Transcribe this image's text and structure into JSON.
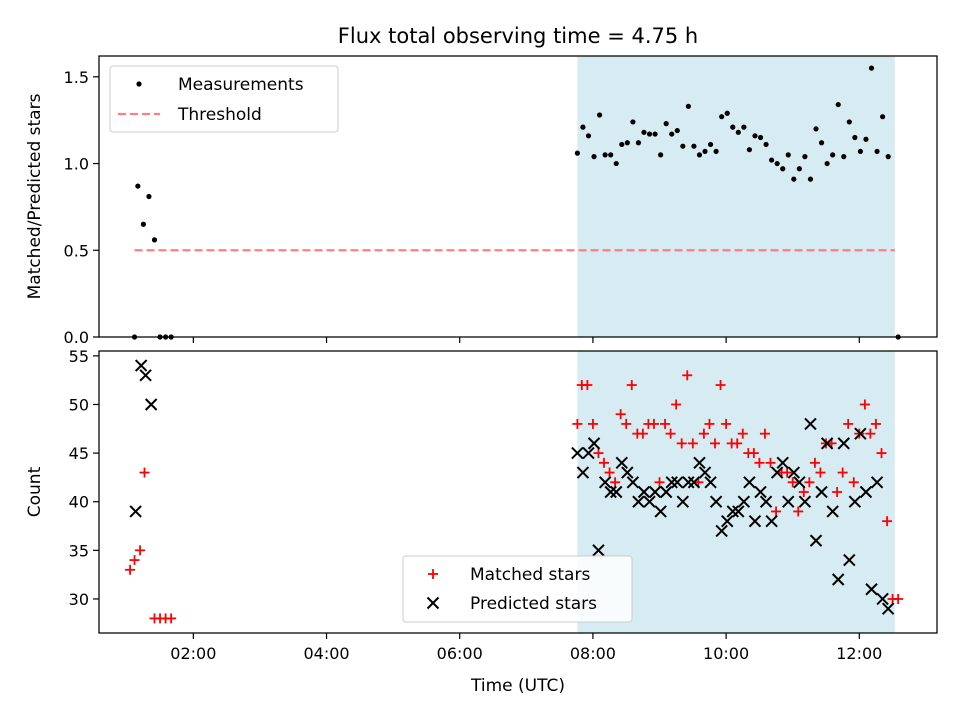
{
  "figure": {
    "title": "Flux total observing time = 4.75 h"
  },
  "chart_data": [
    {
      "type": "scatter",
      "ylabel": "Matched/Predicted stars",
      "xlim": [
        "00:35",
        "13:10"
      ],
      "ylim": [
        0,
        1.62
      ],
      "yticks": [
        0.0,
        0.5,
        1.0,
        1.5
      ],
      "grid": false,
      "legend_position": "top-left",
      "shaded_interval": {
        "x": [
          "07:46",
          "12:32"
        ],
        "color": "#add8e6"
      },
      "series": [
        {
          "name": "Measurements",
          "color": "#000000",
          "marker": "dot",
          "points": [
            {
              "x": "01:07",
              "y": 0.0
            },
            {
              "x": "01:10",
              "y": 0.87
            },
            {
              "x": "01:15",
              "y": 0.65
            },
            {
              "x": "01:20",
              "y": 0.81
            },
            {
              "x": "01:25",
              "y": 0.56
            },
            {
              "x": "01:30",
              "y": 0.0
            },
            {
              "x": "01:35",
              "y": 0.0
            },
            {
              "x": "01:40",
              "y": 0.0
            },
            {
              "x": "07:46",
              "y": 1.06
            },
            {
              "x": "07:51",
              "y": 1.21
            },
            {
              "x": "07:56",
              "y": 1.16
            },
            {
              "x": "08:01",
              "y": 1.04
            },
            {
              "x": "08:06",
              "y": 1.28
            },
            {
              "x": "08:11",
              "y": 1.05
            },
            {
              "x": "08:16",
              "y": 1.05
            },
            {
              "x": "08:21",
              "y": 1.0
            },
            {
              "x": "08:26",
              "y": 1.11
            },
            {
              "x": "08:31",
              "y": 1.12
            },
            {
              "x": "08:36",
              "y": 1.24
            },
            {
              "x": "08:41",
              "y": 1.12
            },
            {
              "x": "08:46",
              "y": 1.18
            },
            {
              "x": "08:51",
              "y": 1.17
            },
            {
              "x": "08:56",
              "y": 1.17
            },
            {
              "x": "09:01",
              "y": 1.05
            },
            {
              "x": "09:06",
              "y": 1.23
            },
            {
              "x": "09:11",
              "y": 1.17
            },
            {
              "x": "09:16",
              "y": 1.19
            },
            {
              "x": "09:21",
              "y": 1.1
            },
            {
              "x": "09:26",
              "y": 1.33
            },
            {
              "x": "09:31",
              "y": 1.1
            },
            {
              "x": "09:36",
              "y": 1.05
            },
            {
              "x": "09:41",
              "y": 1.07
            },
            {
              "x": "09:46",
              "y": 1.11
            },
            {
              "x": "09:51",
              "y": 1.07
            },
            {
              "x": "09:56",
              "y": 1.27
            },
            {
              "x": "10:01",
              "y": 1.29
            },
            {
              "x": "10:06",
              "y": 1.21
            },
            {
              "x": "10:11",
              "y": 1.18
            },
            {
              "x": "10:16",
              "y": 1.21
            },
            {
              "x": "10:21",
              "y": 1.08
            },
            {
              "x": "10:26",
              "y": 1.16
            },
            {
              "x": "10:31",
              "y": 1.15
            },
            {
              "x": "10:36",
              "y": 1.11
            },
            {
              "x": "10:41",
              "y": 1.02
            },
            {
              "x": "10:46",
              "y": 1.0
            },
            {
              "x": "10:51",
              "y": 0.97
            },
            {
              "x": "10:56",
              "y": 1.05
            },
            {
              "x": "11:01",
              "y": 0.91
            },
            {
              "x": "11:06",
              "y": 0.97
            },
            {
              "x": "11:11",
              "y": 1.04
            },
            {
              "x": "11:16",
              "y": 0.91
            },
            {
              "x": "11:21",
              "y": 1.2
            },
            {
              "x": "11:26",
              "y": 1.12
            },
            {
              "x": "11:31",
              "y": 1.0
            },
            {
              "x": "11:36",
              "y": 1.05
            },
            {
              "x": "11:41",
              "y": 1.34
            },
            {
              "x": "11:46",
              "y": 1.04
            },
            {
              "x": "11:51",
              "y": 1.24
            },
            {
              "x": "11:56",
              "y": 1.15
            },
            {
              "x": "12:01",
              "y": 1.07
            },
            {
              "x": "12:06",
              "y": 1.14
            },
            {
              "x": "12:11",
              "y": 1.55
            },
            {
              "x": "12:16",
              "y": 1.07
            },
            {
              "x": "12:21",
              "y": 1.27
            },
            {
              "x": "12:26",
              "y": 1.04
            },
            {
              "x": "12:35",
              "y": 0.0
            }
          ]
        },
        {
          "name": "Threshold",
          "color": "#ff7f7f",
          "style": "dashed",
          "x": [
            "01:07",
            "12:32"
          ],
          "y": [
            0.5,
            0.5
          ]
        }
      ]
    },
    {
      "type": "scatter",
      "xlabel": "Time (UTC)",
      "ylabel": "Count",
      "xlim": [
        "00:35",
        "13:10"
      ],
      "ylim": [
        26.5,
        55.5
      ],
      "xticks": [
        "02:00",
        "04:00",
        "06:00",
        "08:00",
        "10:00",
        "12:00"
      ],
      "yticks": [
        30,
        35,
        40,
        45,
        50,
        55
      ],
      "grid": false,
      "legend_position": "bottom-center",
      "shaded_interval": {
        "x": [
          "07:46",
          "12:32"
        ],
        "color": "#add8e6"
      },
      "series": [
        {
          "name": "Matched stars",
          "color": "#ff0000",
          "marker": "plus",
          "points": [
            {
              "x": "01:03",
              "y": 33
            },
            {
              "x": "01:07",
              "y": 34
            },
            {
              "x": "01:12",
              "y": 35
            },
            {
              "x": "01:16",
              "y": 43
            },
            {
              "x": "01:25",
              "y": 28
            },
            {
              "x": "01:30",
              "y": 28
            },
            {
              "x": "01:35",
              "y": 28
            },
            {
              "x": "01:40",
              "y": 28
            },
            {
              "x": "07:46",
              "y": 48
            },
            {
              "x": "07:50",
              "y": 52
            },
            {
              "x": "07:55",
              "y": 52
            },
            {
              "x": "08:00",
              "y": 48
            },
            {
              "x": "08:05",
              "y": 45
            },
            {
              "x": "08:10",
              "y": 44
            },
            {
              "x": "08:15",
              "y": 43
            },
            {
              "x": "08:20",
              "y": 42
            },
            {
              "x": "08:25",
              "y": 49
            },
            {
              "x": "08:30",
              "y": 48
            },
            {
              "x": "08:35",
              "y": 52
            },
            {
              "x": "08:40",
              "y": 47
            },
            {
              "x": "08:45",
              "y": 47
            },
            {
              "x": "08:50",
              "y": 48
            },
            {
              "x": "08:55",
              "y": 48
            },
            {
              "x": "09:00",
              "y": 42
            },
            {
              "x": "09:05",
              "y": 48
            },
            {
              "x": "09:10",
              "y": 47
            },
            {
              "x": "09:15",
              "y": 50
            },
            {
              "x": "09:20",
              "y": 46
            },
            {
              "x": "09:25",
              "y": 53
            },
            {
              "x": "09:30",
              "y": 46
            },
            {
              "x": "09:35",
              "y": 42
            },
            {
              "x": "09:40",
              "y": 47
            },
            {
              "x": "09:45",
              "y": 48
            },
            {
              "x": "09:50",
              "y": 46
            },
            {
              "x": "09:55",
              "y": 52
            },
            {
              "x": "10:00",
              "y": 48
            },
            {
              "x": "10:05",
              "y": 46
            },
            {
              "x": "10:10",
              "y": 46
            },
            {
              "x": "10:15",
              "y": 47
            },
            {
              "x": "10:20",
              "y": 45
            },
            {
              "x": "10:25",
              "y": 45
            },
            {
              "x": "10:30",
              "y": 44
            },
            {
              "x": "10:35",
              "y": 47
            },
            {
              "x": "10:40",
              "y": 44
            },
            {
              "x": "10:45",
              "y": 39
            },
            {
              "x": "10:50",
              "y": 43
            },
            {
              "x": "10:55",
              "y": 43
            },
            {
              "x": "11:00",
              "y": 42
            },
            {
              "x": "11:05",
              "y": 39
            },
            {
              "x": "11:10",
              "y": 41
            },
            {
              "x": "11:15",
              "y": 42
            },
            {
              "x": "11:20",
              "y": 44
            },
            {
              "x": "11:25",
              "y": 43
            },
            {
              "x": "11:30",
              "y": 46
            },
            {
              "x": "11:35",
              "y": 46
            },
            {
              "x": "11:40",
              "y": 41
            },
            {
              "x": "11:45",
              "y": 43
            },
            {
              "x": "11:50",
              "y": 48
            },
            {
              "x": "11:55",
              "y": 42
            },
            {
              "x": "12:00",
              "y": 47
            },
            {
              "x": "12:05",
              "y": 50
            },
            {
              "x": "12:10",
              "y": 47
            },
            {
              "x": "12:15",
              "y": 48
            },
            {
              "x": "12:20",
              "y": 45
            },
            {
              "x": "12:25",
              "y": 38
            },
            {
              "x": "12:30",
              "y": 30
            },
            {
              "x": "12:35",
              "y": 30
            }
          ]
        },
        {
          "name": "Predicted stars",
          "color": "#000000",
          "marker": "x",
          "points": [
            {
              "x": "01:08",
              "y": 39
            },
            {
              "x": "01:13",
              "y": 54
            },
            {
              "x": "01:17",
              "y": 53
            },
            {
              "x": "01:22",
              "y": 50
            },
            {
              "x": "07:46",
              "y": 45
            },
            {
              "x": "07:51",
              "y": 43
            },
            {
              "x": "07:56",
              "y": 45
            },
            {
              "x": "08:01",
              "y": 46
            },
            {
              "x": "08:05",
              "y": 35
            },
            {
              "x": "08:11",
              "y": 42
            },
            {
              "x": "08:16",
              "y": 41
            },
            {
              "x": "08:21",
              "y": 41
            },
            {
              "x": "08:26",
              "y": 44
            },
            {
              "x": "08:31",
              "y": 43
            },
            {
              "x": "08:36",
              "y": 42
            },
            {
              "x": "08:41",
              "y": 40
            },
            {
              "x": "08:46",
              "y": 41
            },
            {
              "x": "08:51",
              "y": 40
            },
            {
              "x": "08:56",
              "y": 41
            },
            {
              "x": "09:01",
              "y": 39
            },
            {
              "x": "09:06",
              "y": 41
            },
            {
              "x": "09:11",
              "y": 42
            },
            {
              "x": "09:16",
              "y": 42
            },
            {
              "x": "09:21",
              "y": 40
            },
            {
              "x": "09:26",
              "y": 42
            },
            {
              "x": "09:31",
              "y": 42
            },
            {
              "x": "09:36",
              "y": 44
            },
            {
              "x": "09:41",
              "y": 43
            },
            {
              "x": "09:46",
              "y": 42
            },
            {
              "x": "09:51",
              "y": 40
            },
            {
              "x": "09:56",
              "y": 37
            },
            {
              "x": "10:01",
              "y": 38
            },
            {
              "x": "10:06",
              "y": 39
            },
            {
              "x": "10:11",
              "y": 39
            },
            {
              "x": "10:16",
              "y": 40
            },
            {
              "x": "10:21",
              "y": 42
            },
            {
              "x": "10:26",
              "y": 38
            },
            {
              "x": "10:31",
              "y": 41
            },
            {
              "x": "10:36",
              "y": 40
            },
            {
              "x": "10:41",
              "y": 38
            },
            {
              "x": "10:46",
              "y": 43
            },
            {
              "x": "10:51",
              "y": 44
            },
            {
              "x": "10:56",
              "y": 40
            },
            {
              "x": "11:01",
              "y": 43
            },
            {
              "x": "11:06",
              "y": 42
            },
            {
              "x": "11:11",
              "y": 40
            },
            {
              "x": "11:16",
              "y": 48
            },
            {
              "x": "11:21",
              "y": 36
            },
            {
              "x": "11:26",
              "y": 41
            },
            {
              "x": "11:31",
              "y": 46
            },
            {
              "x": "11:36",
              "y": 39
            },
            {
              "x": "11:41",
              "y": 32
            },
            {
              "x": "11:46",
              "y": 46
            },
            {
              "x": "11:51",
              "y": 34
            },
            {
              "x": "11:56",
              "y": 40
            },
            {
              "x": "12:01",
              "y": 47
            },
            {
              "x": "12:06",
              "y": 41
            },
            {
              "x": "12:11",
              "y": 31
            },
            {
              "x": "12:16",
              "y": 42
            },
            {
              "x": "12:21",
              "y": 30
            },
            {
              "x": "12:26",
              "y": 29
            }
          ]
        }
      ]
    }
  ]
}
